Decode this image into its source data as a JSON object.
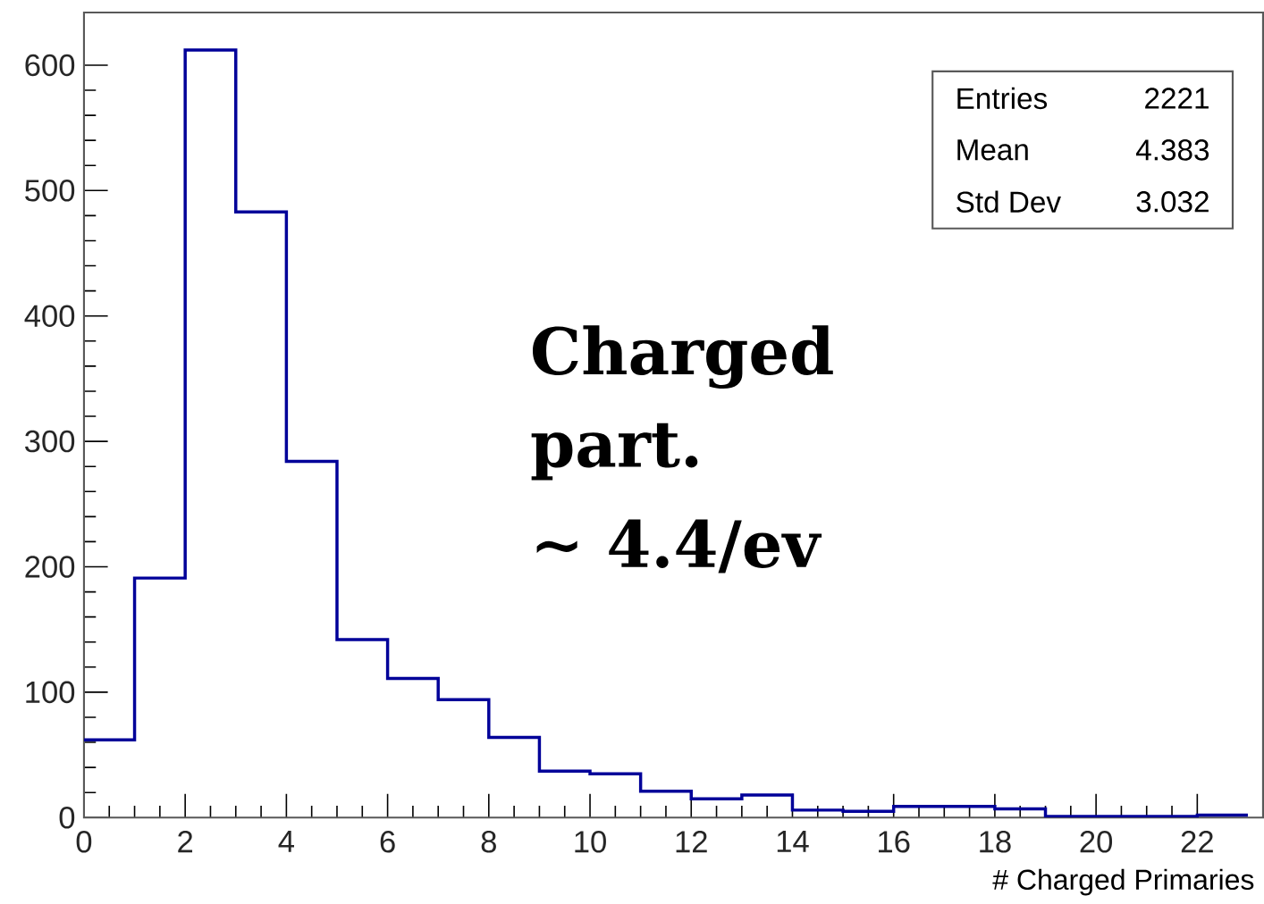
{
  "chart_data": {
    "type": "histogram",
    "bins": [
      0,
      1,
      2,
      3,
      4,
      5,
      6,
      7,
      8,
      9,
      10,
      11,
      12,
      13,
      14,
      15,
      16,
      17,
      18,
      19,
      20,
      21,
      22,
      23
    ],
    "values": [
      62,
      191,
      612,
      483,
      284,
      142,
      111,
      94,
      64,
      37,
      35,
      21,
      15,
      18,
      6,
      5,
      9,
      9,
      7,
      1,
      1,
      1,
      2
    ],
    "color": "#000099",
    "xlim": [
      0,
      23.3
    ],
    "ylim": [
      0,
      642
    ],
    "xticks": [
      0,
      2,
      4,
      6,
      8,
      10,
      12,
      14,
      16,
      18,
      20,
      22
    ],
    "yticks": [
      0,
      100,
      200,
      300,
      400,
      500,
      600
    ],
    "xlabel": "# Charged Primaries",
    "annotations": [
      "Entries",
      "2221",
      "Mean",
      "4.383",
      "Std Dev",
      "3.032",
      "Charged",
      "part.",
      "∼ 4.4/ev"
    ]
  }
}
